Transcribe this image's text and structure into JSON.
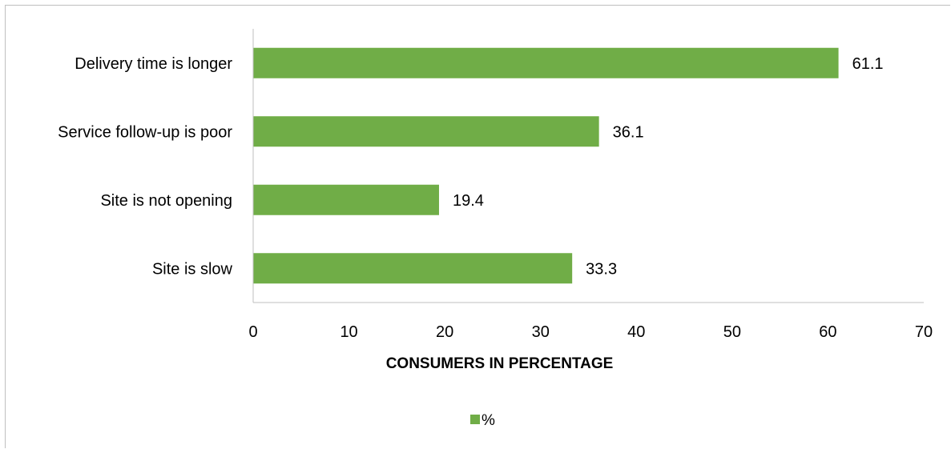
{
  "chart_data": {
    "type": "bar",
    "orientation": "horizontal",
    "categories": [
      "Delivery time is longer",
      "Service follow-up is poor",
      "Site is not opening",
      "Site is slow"
    ],
    "series": [
      {
        "name": "%",
        "values": [
          61.1,
          36.1,
          19.4,
          33.3
        ],
        "color": "#70ad47"
      }
    ],
    "xlabel": "CONSUMERS IN PERCENTAGE",
    "ylabel": "",
    "xlim": [
      0,
      70
    ],
    "xticks": [
      "0",
      "10",
      "20",
      "30",
      "40",
      "50",
      "60",
      "70"
    ],
    "data_labels": [
      "61.1",
      "36.1",
      "19.4",
      "33.3"
    ],
    "grid": false,
    "legend": {
      "position": "bottom",
      "entries": [
        "%"
      ]
    }
  }
}
